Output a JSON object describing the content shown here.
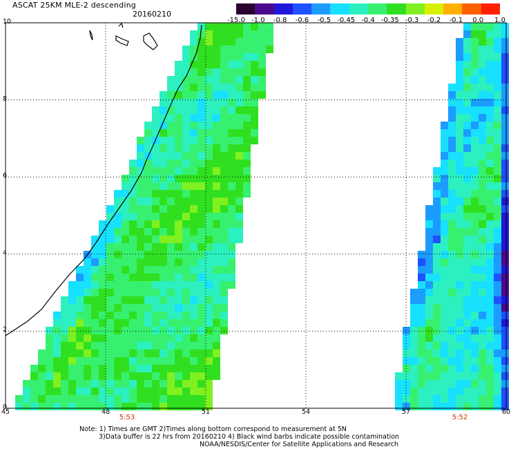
{
  "header": {
    "title": "ASCAT 25KM MLE-2 descending",
    "date": "20160210"
  },
  "colorbar": {
    "labels": [
      "-15.0",
      "-1.0",
      "-0.8",
      "-0.6",
      "-0.5",
      "-0.45",
      "-0.4",
      "-0.35",
      "-0.3",
      "-0.2",
      "-0.1",
      "0.0",
      "1.0"
    ],
    "colors": [
      "#2b002e",
      "#4b0a8c",
      "#2018d8",
      "#2050ff",
      "#1c9cff",
      "#18e0ff",
      "#2cf0c0",
      "#38f070",
      "#30e020",
      "#80f020",
      "#d8f000",
      "#ffb000",
      "#ff6000",
      "#ff2000"
    ]
  },
  "axes": {
    "x_ticks": [
      "45",
      "48",
      "51",
      "54",
      "57",
      "60"
    ],
    "y_ticks": [
      "0",
      "2",
      "4",
      "6",
      "8",
      "10"
    ]
  },
  "swaths": {
    "left_time": "5:53",
    "right_time": "5:52"
  },
  "notes": {
    "line1": "Note: 1) Times are GMT 2)Times along bottom correspond to measurement at 5N",
    "line2": "3)Data buffer is 22 hrs from 20160210 4) Black wind barbs indicate possible contamination",
    "line3": "NOAA/NESDIS/Center for Satellite Applications and Research"
  },
  "colors": {
    "coastline": "#000000",
    "grid": "#000000",
    "time_label": "#cc3300"
  }
}
